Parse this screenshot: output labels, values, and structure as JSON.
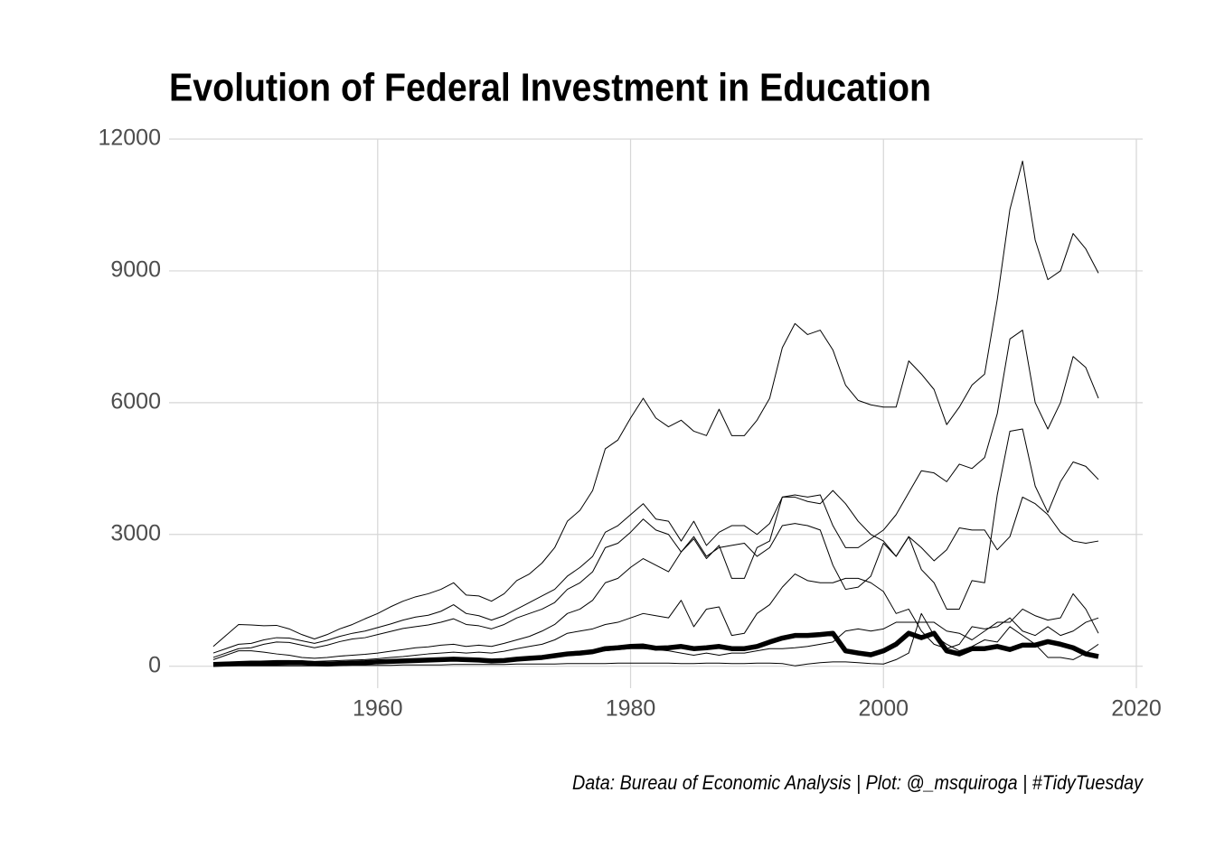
{
  "chart_data": {
    "type": "line",
    "title": "Evolution of Federal Investment in Education",
    "caption": "Data: Bureau of Economic Analysis | Plot: @_msquiroga | #TidyTuesday",
    "x": [
      1947,
      1948,
      1949,
      1950,
      1951,
      1952,
      1953,
      1954,
      1955,
      1956,
      1957,
      1958,
      1959,
      1960,
      1961,
      1962,
      1963,
      1964,
      1965,
      1966,
      1967,
      1968,
      1969,
      1970,
      1971,
      1972,
      1973,
      1974,
      1975,
      1976,
      1977,
      1978,
      1979,
      1980,
      1981,
      1982,
      1983,
      1984,
      1985,
      1986,
      1987,
      1988,
      1989,
      1990,
      1991,
      1992,
      1993,
      1994,
      1995,
      1996,
      1997,
      1998,
      1999,
      2000,
      2001,
      2002,
      2003,
      2004,
      2005,
      2006,
      2007,
      2008,
      2009,
      2010,
      2011,
      2012,
      2013,
      2014,
      2015,
      2016,
      2017
    ],
    "series": [
      {
        "color": "#000000",
        "linewidth": 1,
        "values": [
          450,
          700,
          950,
          940,
          920,
          930,
          850,
          720,
          620,
          720,
          850,
          950,
          1080,
          1200,
          1350,
          1480,
          1580,
          1650,
          1750,
          1900,
          1620,
          1600,
          1480,
          1650,
          1950,
          2100,
          2350,
          2700,
          3300,
          3550,
          4000,
          4950,
          5150,
          5650,
          6100,
          5650,
          5450,
          5600,
          5350,
          5250,
          5850,
          5250,
          5250,
          5600,
          6100,
          7250,
          7800,
          7550,
          7650,
          7200,
          6400,
          6050,
          5950,
          5900,
          5900,
          6950,
          6650,
          6300,
          5500,
          5900,
          6400,
          6650,
          8350,
          10400,
          11500,
          9700,
          8800,
          9000,
          9850,
          9500,
          8950
        ]
      },
      {
        "color": "#000000",
        "linewidth": 1,
        "values": [
          300,
          400,
          500,
          520,
          600,
          650,
          640,
          580,
          520,
          590,
          680,
          750,
          800,
          880,
          960,
          1050,
          1120,
          1160,
          1250,
          1400,
          1200,
          1150,
          1050,
          1150,
          1300,
          1450,
          1600,
          1750,
          2050,
          2250,
          2500,
          3050,
          3200,
          3450,
          3700,
          3350,
          3300,
          2850,
          3300,
          2750,
          3050,
          3200,
          3200,
          3000,
          3250,
          3850,
          3900,
          3850,
          3900,
          3200,
          2700,
          2700,
          2900,
          3100,
          3450,
          3950,
          4450,
          4400,
          4200,
          4600,
          4500,
          4750,
          5750,
          7450,
          7650,
          6000,
          5400,
          6000,
          7050,
          6800,
          6100
        ]
      },
      {
        "color": "#000000",
        "linewidth": 1,
        "values": [
          200,
          300,
          400,
          420,
          500,
          550,
          540,
          480,
          420,
          480,
          560,
          620,
          650,
          720,
          790,
          860,
          900,
          940,
          1000,
          1080,
          950,
          920,
          850,
          950,
          1100,
          1200,
          1300,
          1450,
          1750,
          1900,
          2150,
          2700,
          2800,
          3050,
          3350,
          3100,
          3000,
          2600,
          2950,
          2500,
          2700,
          2750,
          2800,
          2500,
          2700,
          3200,
          3250,
          3200,
          3100,
          2300,
          1750,
          1800,
          2050,
          2800,
          2500,
          2950,
          2200,
          1900,
          1300,
          1300,
          1950,
          1900,
          3900,
          5350,
          5400,
          4100,
          3500,
          4200,
          4650,
          4550,
          4250
        ]
      },
      {
        "color": "#000000",
        "linewidth": 1,
        "values": [
          150,
          250,
          350,
          350,
          320,
          280,
          250,
          200,
          180,
          200,
          230,
          250,
          270,
          300,
          340,
          380,
          420,
          440,
          480,
          500,
          450,
          480,
          450,
          520,
          600,
          680,
          800,
          950,
          1200,
          1300,
          1500,
          1900,
          2000,
          2250,
          2450,
          2300,
          2150,
          2600,
          2900,
          2450,
          2750,
          2000,
          2000,
          2700,
          2850,
          3850,
          3850,
          3750,
          3700,
          4000,
          3700,
          3300,
          3000,
          2850,
          2500,
          2950,
          2700,
          2400,
          2650,
          3150,
          3100,
          3100,
          2650,
          2950,
          3850,
          3700,
          3450,
          3050,
          2850,
          2800,
          2850
        ]
      },
      {
        "color": "#000000",
        "linewidth": 1,
        "values": [
          50,
          80,
          100,
          110,
          120,
          130,
          130,
          120,
          110,
          120,
          130,
          140,
          150,
          170,
          200,
          220,
          250,
          280,
          300,
          320,
          300,
          320,
          300,
          340,
          400,
          450,
          500,
          600,
          750,
          800,
          850,
          950,
          1000,
          1100,
          1200,
          1150,
          1100,
          1500,
          900,
          1300,
          1350,
          700,
          750,
          1200,
          1400,
          1800,
          2100,
          1950,
          1900,
          1900,
          2000,
          2000,
          1900,
          1700,
          1200,
          1300,
          800,
          500,
          400,
          500,
          900,
          850,
          900,
          1100,
          800,
          700,
          900,
          700,
          800,
          1000,
          1100
        ]
      },
      {
        "color": "#000000",
        "linewidth": 1,
        "values": [
          20,
          30,
          40,
          40,
          40,
          40,
          40,
          40,
          40,
          50,
          60,
          70,
          80,
          90,
          100,
          110,
          120,
          130,
          140,
          150,
          140,
          150,
          140,
          160,
          180,
          200,
          220,
          250,
          280,
          300,
          320,
          350,
          380,
          400,
          400,
          380,
          350,
          300,
          250,
          300,
          250,
          300,
          300,
          350,
          400,
          400,
          420,
          450,
          500,
          550,
          800,
          850,
          800,
          850,
          1000,
          1000,
          1000,
          1000,
          800,
          750,
          600,
          800,
          1000,
          1000,
          1300,
          1150,
          1050,
          1100,
          1650,
          1300,
          750
        ]
      },
      {
        "color": "#000000",
        "linewidth": 1,
        "values": [
          10,
          10,
          10,
          10,
          10,
          10,
          10,
          10,
          10,
          10,
          20,
          20,
          20,
          20,
          20,
          30,
          30,
          30,
          30,
          40,
          40,
          40,
          40,
          40,
          50,
          50,
          50,
          50,
          60,
          60,
          60,
          60,
          70,
          70,
          70,
          70,
          70,
          60,
          60,
          70,
          70,
          60,
          60,
          70,
          70,
          60,
          10,
          50,
          80,
          100,
          100,
          80,
          60,
          50,
          150,
          300,
          1200,
          700,
          500,
          350,
          450,
          600,
          550,
          900,
          700,
          500,
          200,
          200,
          150,
          300,
          500
        ]
      },
      {
        "color": "#000000",
        "linewidth": 5.5,
        "values": [
          40,
          50,
          60,
          70,
          70,
          70,
          80,
          80,
          60,
          50,
          60,
          70,
          80,
          100,
          110,
          120,
          130,
          140,
          150,
          160,
          150,
          140,
          120,
          130,
          160,
          180,
          200,
          240,
          280,
          300,
          330,
          400,
          420,
          450,
          460,
          410,
          420,
          450,
          400,
          420,
          450,
          400,
          400,
          450,
          550,
          640,
          700,
          700,
          720,
          750,
          350,
          300,
          260,
          350,
          500,
          750,
          650,
          750,
          350,
          280,
          400,
          400,
          450,
          380,
          480,
          480,
          560,
          500,
          420,
          280,
          220
        ]
      }
    ],
    "xlim": [
      1943.5,
      2020.5
    ],
    "xticks": [
      1960,
      1980,
      2000,
      2020
    ],
    "ylim": [
      -500,
      12000
    ],
    "yticks": [
      0,
      3000,
      6000,
      9000,
      12000
    ],
    "grid": true
  }
}
